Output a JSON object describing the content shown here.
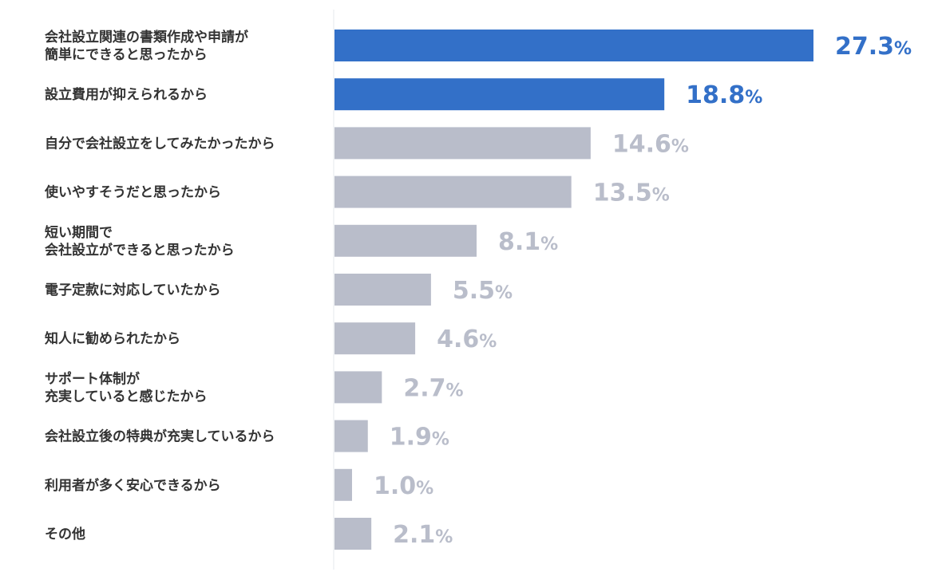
{
  "chart_data": {
    "type": "bar",
    "orientation": "horizontal",
    "title": "",
    "xlabel": "",
    "ylabel": "",
    "unit": "%",
    "xlim": [
      0,
      28.5
    ],
    "grid": false,
    "legend": "none",
    "categories": [
      [
        "会社設立関連の書類作成や申請が",
        "簡単にできると思ったから"
      ],
      [
        "設立費用が抑えられるから"
      ],
      [
        "自分で会社設立をしてみたかったから"
      ],
      [
        "使いやすそうだと思ったから"
      ],
      [
        "短い期間で",
        "会社設立ができると思ったから"
      ],
      [
        "電子定款に対応していたから"
      ],
      [
        "知人に勧められたから"
      ],
      [
        "サポート体制が",
        "充実していると感じたから"
      ],
      [
        "会社設立後の特典が充実しているから"
      ],
      [
        "利用者が多く安心できるから"
      ],
      [
        "その他"
      ]
    ],
    "values": [
      27.3,
      18.8,
      14.6,
      13.5,
      8.1,
      5.5,
      4.6,
      2.7,
      1.9,
      1.0,
      2.1
    ],
    "highlighted": [
      true,
      true,
      false,
      false,
      false,
      false,
      false,
      false,
      false,
      false,
      false
    ],
    "colors": {
      "highlight": "#3370c8",
      "normal_bar": "#b9bdca",
      "normal_label": "#b9bdca",
      "axis_line": "#e6e8ec"
    }
  }
}
